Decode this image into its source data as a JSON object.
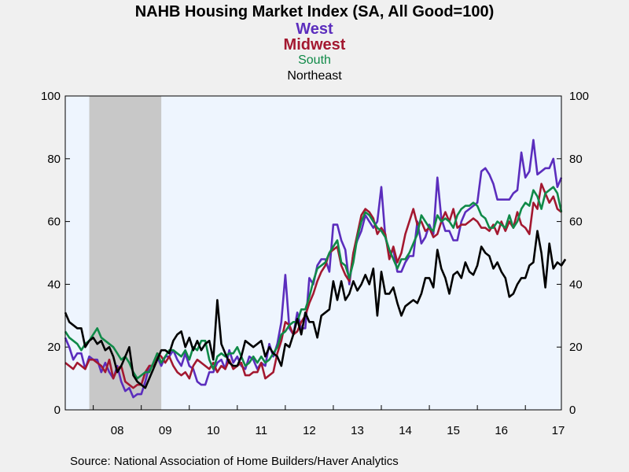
{
  "chart_data": {
    "type": "line",
    "title": "NAHB Housing Market Index (SA, All Good=100)",
    "source": "Source:  National Association of Home Builders/Haver Analytics",
    "x_start": "2007-06",
    "x_tick_labels": [
      "08",
      "09",
      "10",
      "11",
      "12",
      "13",
      "14",
      "15",
      "16",
      "17"
    ],
    "ylim": [
      0,
      100
    ],
    "y_ticks": [
      0,
      20,
      40,
      60,
      80,
      100
    ],
    "grid": false,
    "shaded_recession": [
      "2007-12",
      "2009-06"
    ],
    "plot_background": "#eef5fe",
    "recession_color": "#c8c8c8",
    "series": [
      {
        "name": "West",
        "color": "#5b2dbd",
        "values": [
          23,
          20,
          16,
          18,
          18,
          13,
          17,
          16,
          16,
          12,
          15,
          12,
          10,
          14,
          9,
          6,
          7,
          4,
          5,
          5,
          9,
          14,
          14,
          17,
          14,
          17,
          17,
          19,
          16,
          14,
          18,
          14,
          13,
          9,
          8,
          8,
          12,
          12,
          15,
          16,
          13,
          19,
          15,
          17,
          14,
          13,
          17,
          16,
          13,
          15,
          14,
          21,
          17,
          21,
          28,
          43,
          26,
          24,
          31,
          26,
          26,
          42,
          40,
          46,
          48,
          48,
          44,
          59,
          59,
          54,
          51,
          40,
          50,
          54,
          57,
          62,
          60,
          58,
          60,
          71,
          55,
          50,
          51,
          44,
          44,
          47,
          49,
          49,
          60,
          53,
          55,
          59,
          56,
          74,
          61,
          57,
          57,
          54,
          54,
          60,
          63,
          64,
          65,
          66,
          76,
          77,
          75,
          72,
          67,
          67,
          67,
          67,
          69,
          70,
          82,
          74,
          76,
          86,
          75,
          76,
          77,
          77,
          80,
          71,
          74
        ]
      },
      {
        "name": "Midwest",
        "color": "#a31830",
        "values": [
          15,
          14,
          13,
          15,
          14,
          13,
          16,
          16,
          15,
          14,
          12,
          16,
          10,
          13,
          14,
          9,
          8,
          7,
          8,
          8,
          12,
          14,
          14,
          18,
          17,
          15,
          17,
          14,
          12,
          11,
          12,
          10,
          14,
          16,
          15,
          14,
          13,
          15,
          12,
          14,
          13,
          16,
          13,
          14,
          15,
          11,
          11,
          12,
          12,
          15,
          10,
          11,
          12,
          18,
          22,
          28,
          27,
          24,
          25,
          28,
          30,
          34,
          37,
          41,
          44,
          46,
          50,
          51,
          52,
          46,
          43,
          41,
          50,
          56,
          62,
          64,
          63,
          61,
          56,
          58,
          56,
          48,
          52,
          47,
          50,
          56,
          60,
          64,
          59,
          60,
          57,
          58,
          55,
          56,
          60,
          63,
          60,
          64,
          58,
          59,
          59,
          60,
          61,
          60,
          58,
          58,
          57,
          59,
          56,
          60,
          57,
          60,
          58,
          63,
          59,
          58,
          56,
          66,
          64,
          72,
          69,
          66,
          68,
          64,
          63
        ]
      },
      {
        "name": "South",
        "color": "#108a48",
        "values": [
          25,
          23,
          22,
          21,
          19,
          21,
          22,
          24,
          26,
          23,
          22,
          21,
          20,
          18,
          16,
          17,
          15,
          12,
          10,
          11,
          12,
          12,
          15,
          18,
          15,
          17,
          19,
          19,
          18,
          17,
          19,
          16,
          20,
          19,
          22,
          22,
          16,
          13,
          17,
          18,
          17,
          18,
          18,
          20,
          17,
          14,
          15,
          17,
          15,
          17,
          15,
          16,
          18,
          20,
          24,
          25,
          27,
          28,
          28,
          32,
          32,
          36,
          41,
          45,
          46,
          47,
          50,
          52,
          54,
          47,
          46,
          42,
          47,
          55,
          60,
          63,
          62,
          60,
          58,
          57,
          55,
          51,
          48,
          45,
          48,
          48,
          50,
          53,
          56,
          62,
          60,
          58,
          57,
          62,
          60,
          61,
          60,
          58,
          62,
          64,
          65,
          65,
          66,
          65,
          62,
          61,
          58,
          58,
          60,
          59,
          58,
          62,
          58,
          60,
          64,
          66,
          65,
          70,
          68,
          64,
          69,
          70,
          71,
          69,
          63
        ]
      },
      {
        "name": "Northeast",
        "color": "#000000",
        "values": [
          31,
          28,
          27,
          26,
          26,
          20,
          22,
          23,
          21,
          22,
          19,
          20,
          17,
          12,
          14,
          17,
          20,
          11,
          9,
          8,
          7,
          10,
          13,
          16,
          19,
          19,
          18,
          22,
          24,
          25,
          20,
          23,
          19,
          22,
          19,
          21,
          22,
          16,
          35,
          21,
          18,
          15,
          14,
          14,
          17,
          22,
          21,
          20,
          21,
          22,
          17,
          20,
          18,
          17,
          14,
          21,
          20,
          24,
          29,
          24,
          31,
          28,
          28,
          23,
          30,
          31,
          32,
          41,
          35,
          41,
          35,
          37,
          41,
          38,
          40,
          43,
          40,
          45,
          30,
          44,
          37,
          37,
          39,
          34,
          30,
          33,
          34,
          35,
          34,
          37,
          42,
          42,
          39,
          51,
          45,
          42,
          37,
          43,
          44,
          42,
          47,
          44,
          43,
          46,
          52,
          50,
          49,
          45,
          47,
          44,
          42,
          36,
          37,
          40,
          42,
          42,
          46,
          47,
          57,
          50,
          39,
          53,
          45,
          47,
          46,
          48
        ]
      }
    ]
  }
}
